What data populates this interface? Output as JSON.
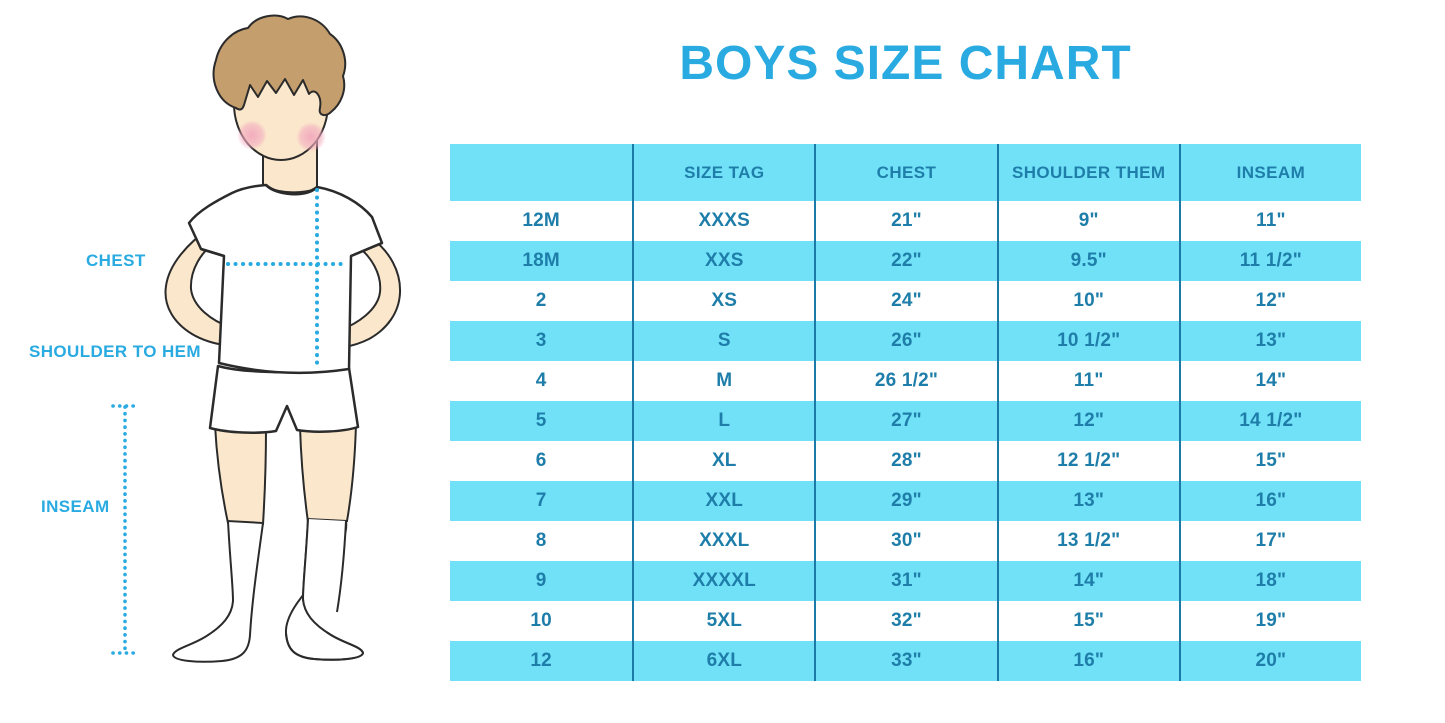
{
  "title": "BOYS SIZE CHART",
  "figure": {
    "chest_label": "CHEST",
    "shoulder_label": "SHOULDER TO HEM",
    "inseam_label": "INSEAM"
  },
  "chart_data": {
    "type": "table",
    "title": "BOYS SIZE CHART",
    "columns": [
      "",
      "SIZE TAG",
      "CHEST",
      "SHOULDER THEM",
      "INSEAM"
    ],
    "rows": [
      [
        "12M",
        "XXXS",
        "21\"",
        "9\"",
        "11\""
      ],
      [
        "18M",
        "XXS",
        "22\"",
        "9.5\"",
        "11 1/2\""
      ],
      [
        "2",
        "XS",
        "24\"",
        "10\"",
        "12\""
      ],
      [
        "3",
        "S",
        "26\"",
        "10 1/2\"",
        "13\""
      ],
      [
        "4",
        "M",
        "26 1/2\"",
        "11\"",
        "14\""
      ],
      [
        "5",
        "L",
        "27\"",
        "12\"",
        "14 1/2\""
      ],
      [
        "6",
        "XL",
        "28\"",
        "12 1/2\"",
        "15\""
      ],
      [
        "7",
        "XXL",
        "29\"",
        "13\"",
        "16\""
      ],
      [
        "8",
        "XXXL",
        "30\"",
        "13 1/2\"",
        "17\""
      ],
      [
        "9",
        "XXXXL",
        "31\"",
        "14\"",
        "18\""
      ],
      [
        "10",
        "5XL",
        "32\"",
        "15\"",
        "19\""
      ],
      [
        "12",
        "6XL",
        "33\"",
        "16\"",
        "20\""
      ]
    ],
    "layout": {
      "row_striping": [
        "lightcyan",
        "white"
      ],
      "grid": "vertical-dividers-only",
      "legend": "none"
    }
  },
  "colors": {
    "accent_blue": "#29ABE2",
    "row_cyan": "#71E1F8",
    "table_text": "#1E7EA9",
    "divider": "#1B7AA6",
    "skin": "#FBE8CC",
    "hair": "#C59E6E",
    "blush": "#F2A9BE",
    "outline": "#2B2B2B"
  }
}
